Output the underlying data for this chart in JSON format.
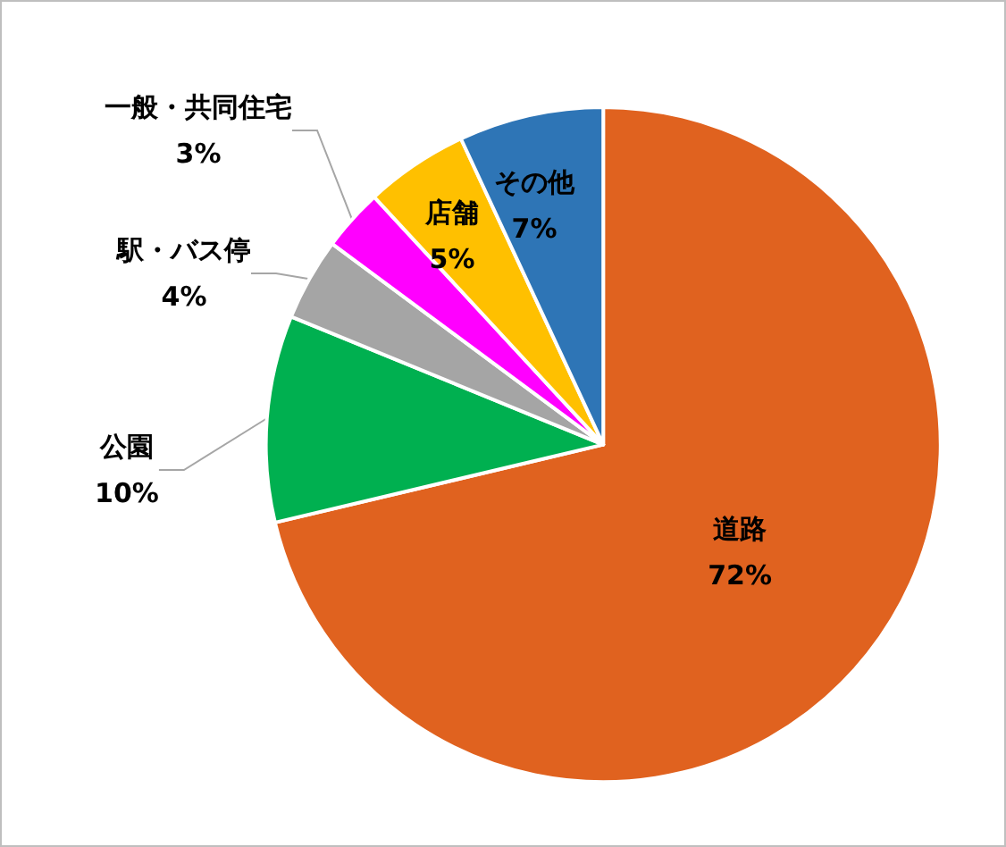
{
  "chart_data": {
    "type": "pie",
    "categories": [
      "道路",
      "公園",
      "駅・バス停",
      "一般・共同住宅",
      "店舗",
      "その他"
    ],
    "values": [
      72,
      10,
      4,
      3,
      5,
      7
    ],
    "value_labels": [
      "72%",
      "10%",
      "4%",
      "3%",
      "5%",
      "7%"
    ],
    "colors": [
      "#e0621f",
      "#00b050",
      "#a5a5a5",
      "#ff00ff",
      "#ffc000",
      "#2e75b6"
    ],
    "legend": false
  }
}
